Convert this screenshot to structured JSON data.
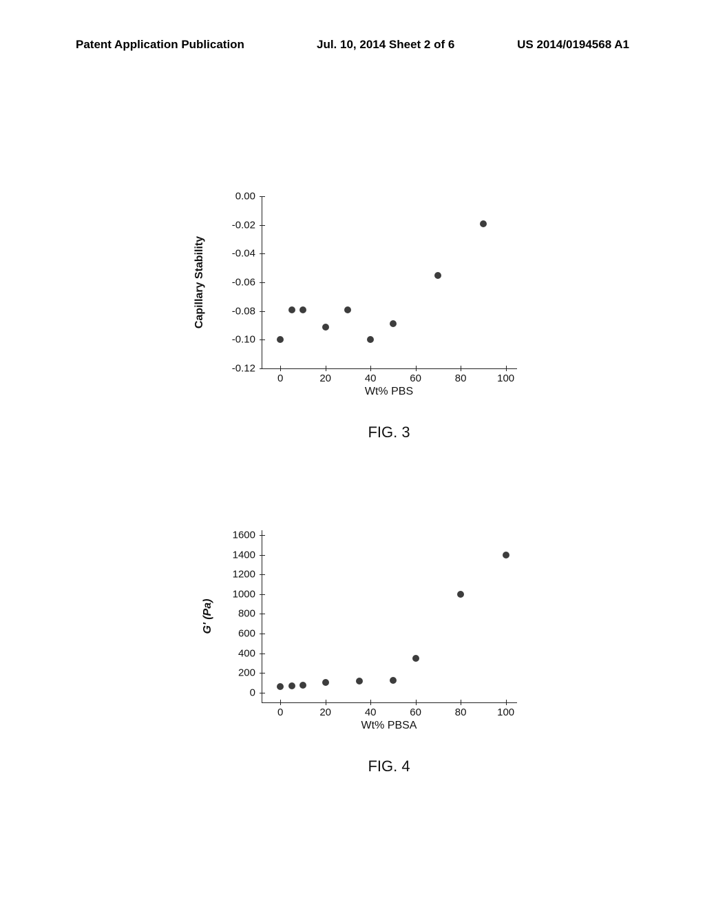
{
  "header": {
    "left": "Patent Application Publication",
    "center": "Jul. 10, 2014  Sheet 2 of 6",
    "right": "US 2014/0194568 A1"
  },
  "charts": [
    {
      "type": "scatter",
      "caption": "FIG. 3",
      "xlabel": "Wt% PBS",
      "ylabel": "Capillary Stability",
      "xlim": [
        -8,
        105
      ],
      "ylim": [
        -0.12,
        0.0
      ],
      "xticks": [
        0,
        20,
        40,
        60,
        80,
        100
      ],
      "yticks": [
        0.0,
        -0.02,
        -0.04,
        -0.06,
        -0.08,
        -0.1,
        -0.12
      ],
      "ytick_labels": [
        "0.00",
        "-0.02",
        "-0.04",
        "-0.06",
        "-0.08",
        "-0.10",
        "-0.12"
      ],
      "marker_color": "#2d2d2d",
      "marker_size": 10,
      "points": [
        {
          "x": 0,
          "y": -0.1
        },
        {
          "x": 5,
          "y": -0.079
        },
        {
          "x": 10,
          "y": -0.079
        },
        {
          "x": 20,
          "y": -0.091
        },
        {
          "x": 30,
          "y": -0.079
        },
        {
          "x": 40,
          "y": -0.1
        },
        {
          "x": 50,
          "y": -0.089
        },
        {
          "x": 70,
          "y": -0.055
        },
        {
          "x": 90,
          "y": -0.019
        }
      ]
    },
    {
      "type": "scatter",
      "caption": "FIG. 4",
      "xlabel": "Wt% PBSA",
      "ylabel": "G' (Pa)",
      "ylabel_italic": true,
      "xlim": [
        -8,
        105
      ],
      "ylim": [
        -100,
        1650
      ],
      "xticks": [
        0,
        20,
        40,
        60,
        80,
        100
      ],
      "yticks": [
        0,
        200,
        400,
        600,
        800,
        1000,
        1200,
        1400,
        1600
      ],
      "ytick_labels": [
        "0",
        "200",
        "400",
        "600",
        "800",
        "1000",
        "1200",
        "1400",
        "1600"
      ],
      "marker_color": "#2d2d2d",
      "marker_size": 10,
      "points": [
        {
          "x": 0,
          "y": 60
        },
        {
          "x": 5,
          "y": 70
        },
        {
          "x": 10,
          "y": 75
        },
        {
          "x": 20,
          "y": 100
        },
        {
          "x": 35,
          "y": 120
        },
        {
          "x": 50,
          "y": 125
        },
        {
          "x": 60,
          "y": 350
        },
        {
          "x": 80,
          "y": 1000
        },
        {
          "x": 100,
          "y": 1400
        }
      ]
    }
  ]
}
